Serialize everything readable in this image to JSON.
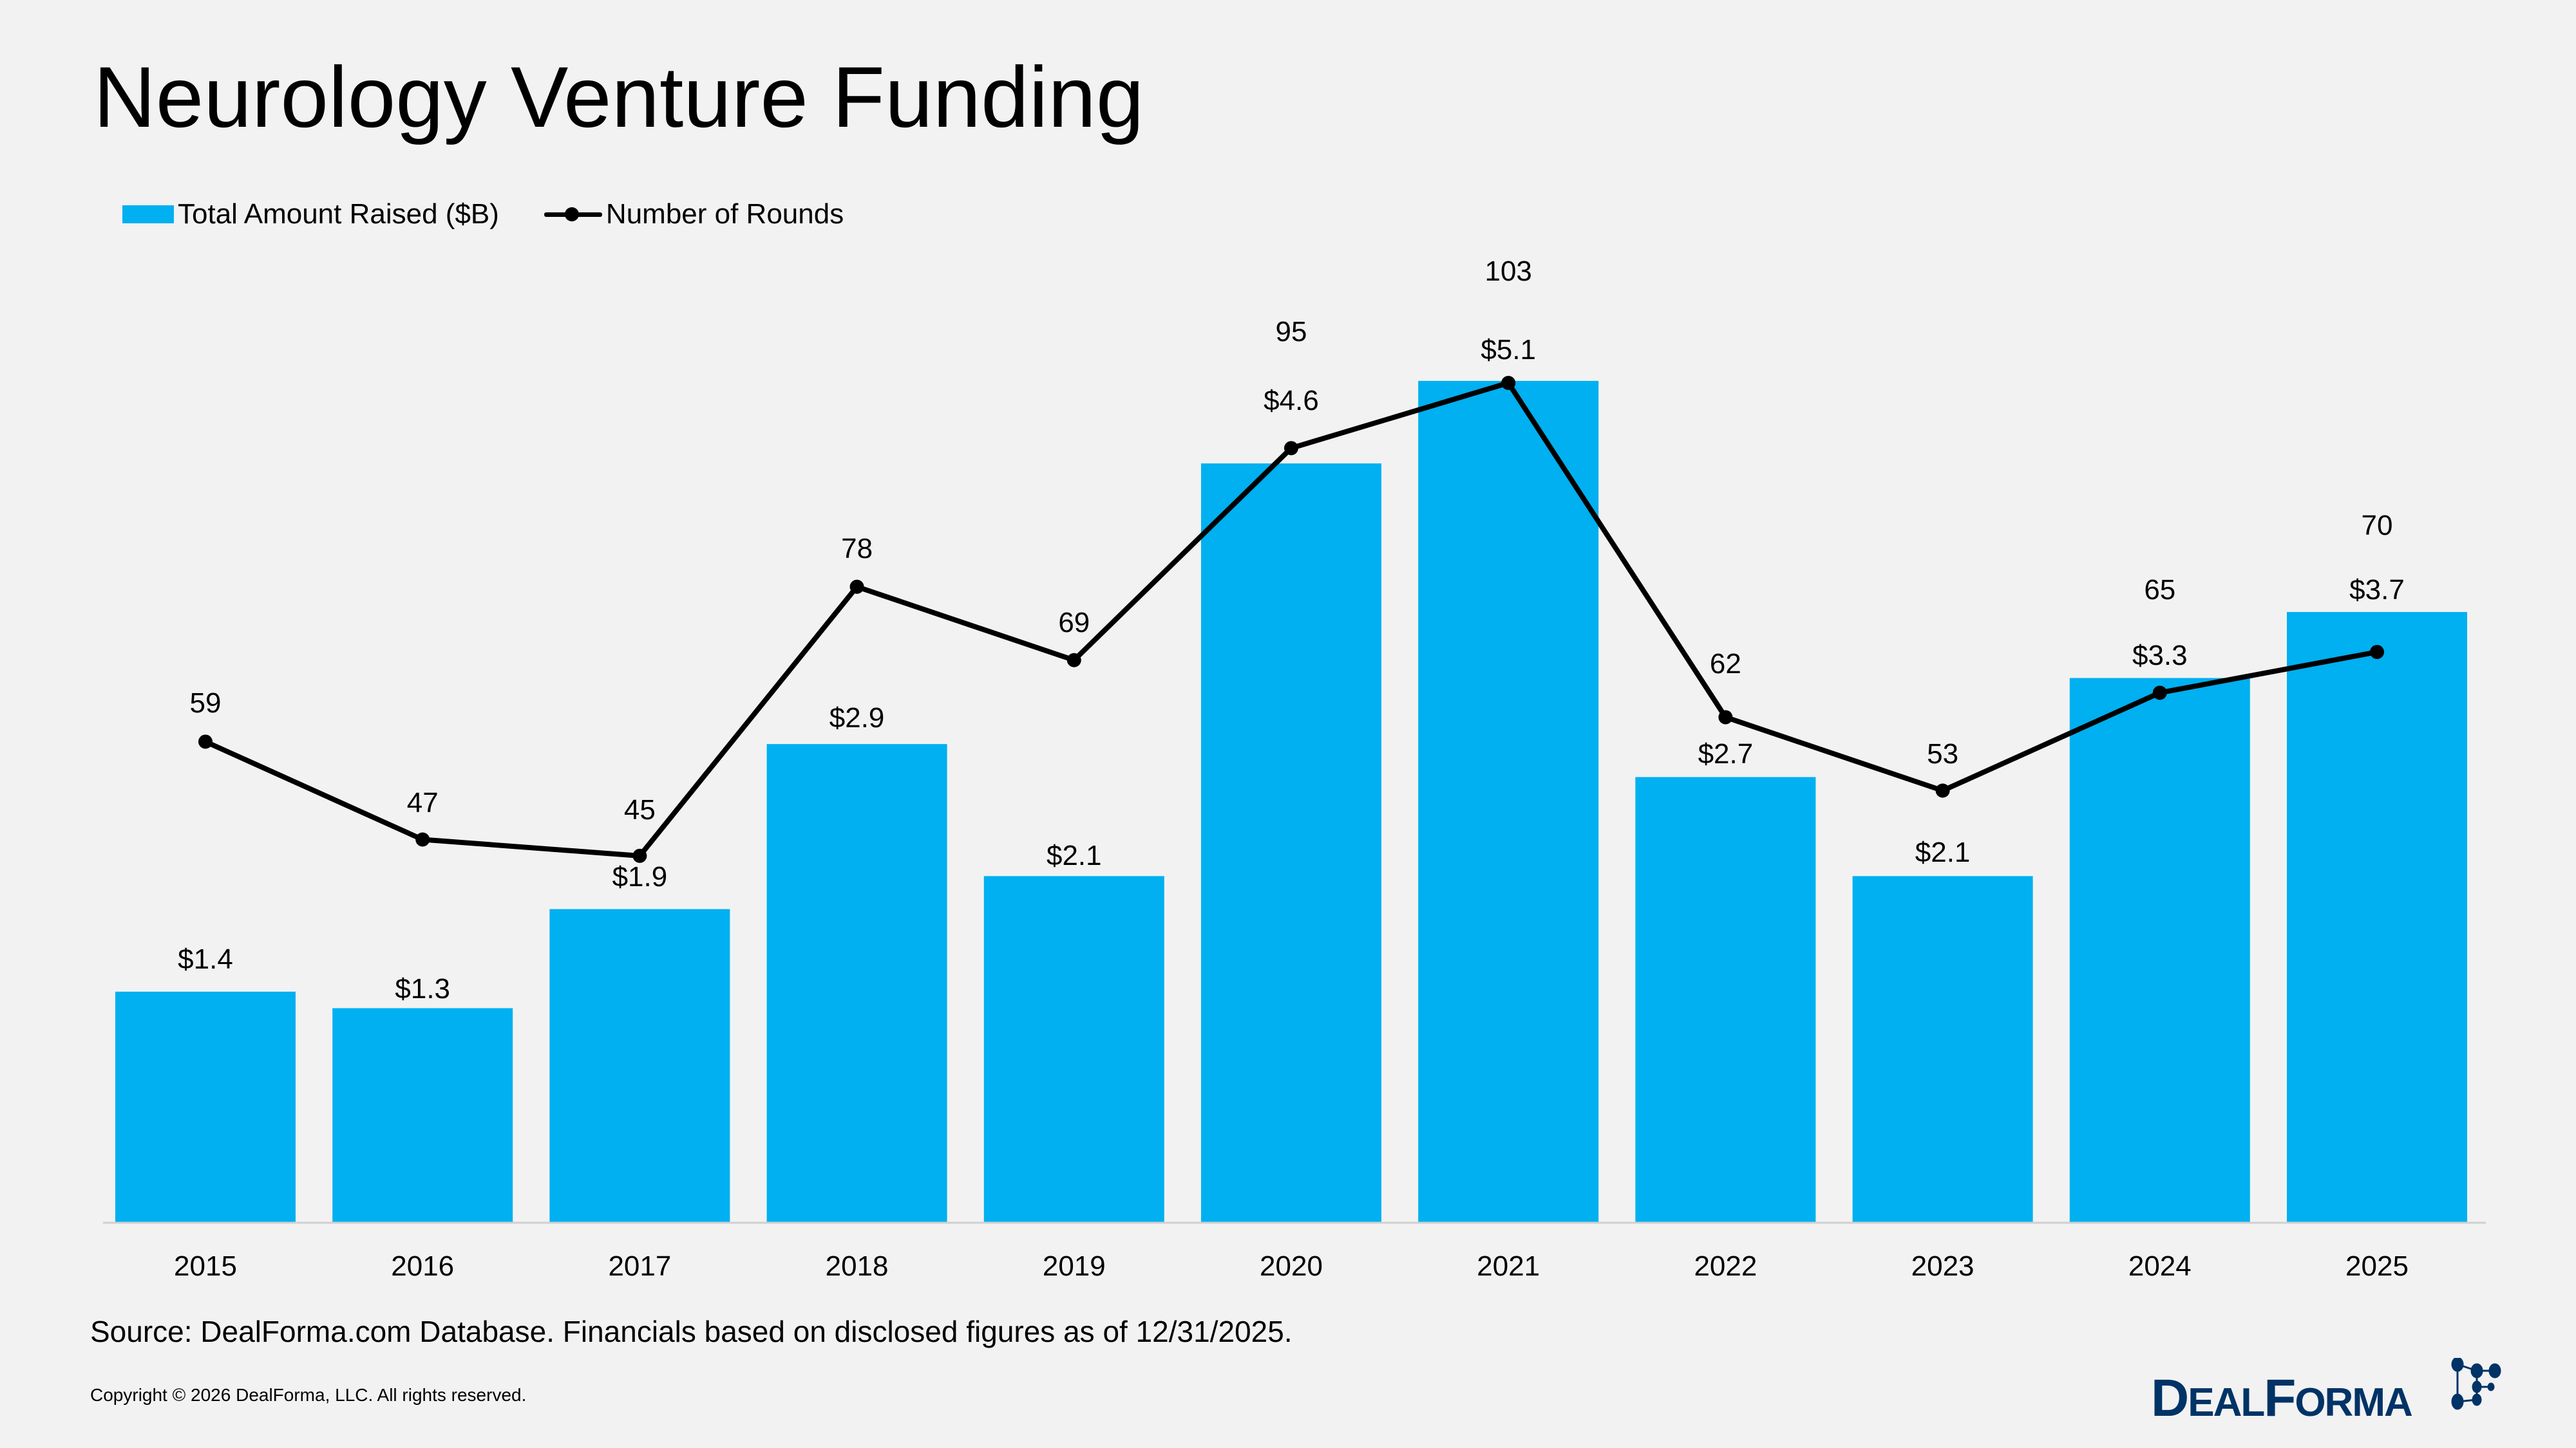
{
  "title": "Neurology Venture Funding",
  "legend": {
    "bars": "Total Amount Raised ($B)",
    "line": "Number of Rounds"
  },
  "chart_data": {
    "type": "bar+line",
    "title": "Neurology Venture Funding",
    "categories": [
      "2015",
      "2016",
      "2017",
      "2018",
      "2019",
      "2020",
      "2021",
      "2022",
      "2023",
      "2024",
      "2025"
    ],
    "series": [
      {
        "name": "Total Amount Raised ($B)",
        "type": "bar",
        "color": "#00b0f0",
        "values": [
          1.4,
          1.3,
          1.9,
          2.9,
          2.1,
          4.6,
          5.1,
          2.7,
          2.1,
          3.3,
          3.7
        ],
        "labels": [
          "$1.4",
          "$1.3",
          "$1.9",
          "$2.9",
          "$2.1",
          "$4.6",
          "$5.1",
          "$2.7",
          "$2.1",
          "$3.3",
          "$3.7"
        ]
      },
      {
        "name": "Number of Rounds",
        "type": "line",
        "color": "#000000",
        "values": [
          59,
          47,
          45,
          78,
          69,
          95,
          103,
          62,
          53,
          65,
          70
        ],
        "labels": [
          "59",
          "47",
          "45",
          "78",
          "69",
          "95",
          "103",
          "62",
          "53",
          "65",
          "70"
        ]
      }
    ],
    "grid": false,
    "legend_position": "top-left"
  },
  "footer": {
    "source": "Source: DealForma.com Database. Financials based on disclosed figures as of 12/31/2025.",
    "copyright": "Copyright © 2026 DealForma, LLC. All rights reserved.",
    "logo_text": "DealForma"
  },
  "colors": {
    "bar": "#00b0f0",
    "line": "#000000",
    "logo": "#003366",
    "background": "#f2f2f2"
  }
}
